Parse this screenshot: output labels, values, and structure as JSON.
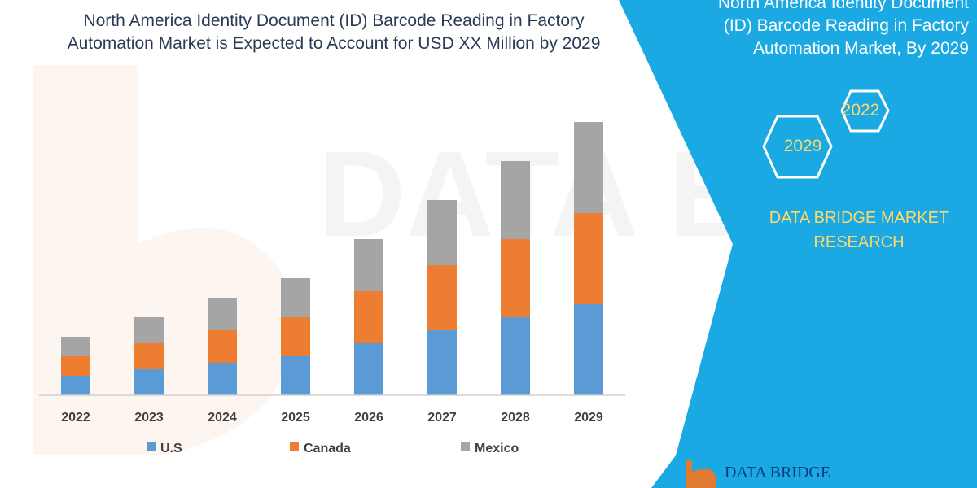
{
  "header": {
    "title_line1": "North America Identity Document (ID) Barcode Reading in Factory",
    "title_line2": "Automation Market is Expected to Account for USD XX Million by 2029"
  },
  "side_panel": {
    "title_line0": "North America Identity Document",
    "title_line1": "(ID) Barcode Reading in Factory",
    "title_line2": "Automation Market, By 2029",
    "hex_label_1": "2022",
    "hex_label_2": "2029",
    "brand_line1": "DATA BRIDGE MARKET",
    "brand_line2": "RESEARCH",
    "logo_text": "DATA BRIDGE",
    "bg_color": "#1ba9e3",
    "accent_color": "#ffd86a"
  },
  "chart_data": {
    "type": "bar",
    "stacked": true,
    "title": "North America Identity Document (ID) Barcode Reading in Factory Automation Market is Expected to Account for USD XX Million by 2029",
    "categories": [
      "2022",
      "2023",
      "2024",
      "2025",
      "2026",
      "2027",
      "2028",
      "2029"
    ],
    "series": [
      {
        "name": "U.S",
        "color": "#5b9bd5",
        "values": [
          24,
          32,
          40,
          48,
          64,
          80,
          96,
          112
        ]
      },
      {
        "name": "Canada",
        "color": "#ed7d31",
        "values": [
          24,
          32,
          40,
          48,
          64,
          80,
          96,
          112
        ]
      },
      {
        "name": "Mexico",
        "color": "#a5a5a5",
        "values": [
          24,
          32,
          40,
          48,
          64,
          80,
          96,
          112
        ]
      }
    ],
    "ylim": [
      0,
      340
    ],
    "grid": false,
    "y_axis_visible": false,
    "legend_position": "bottom"
  }
}
